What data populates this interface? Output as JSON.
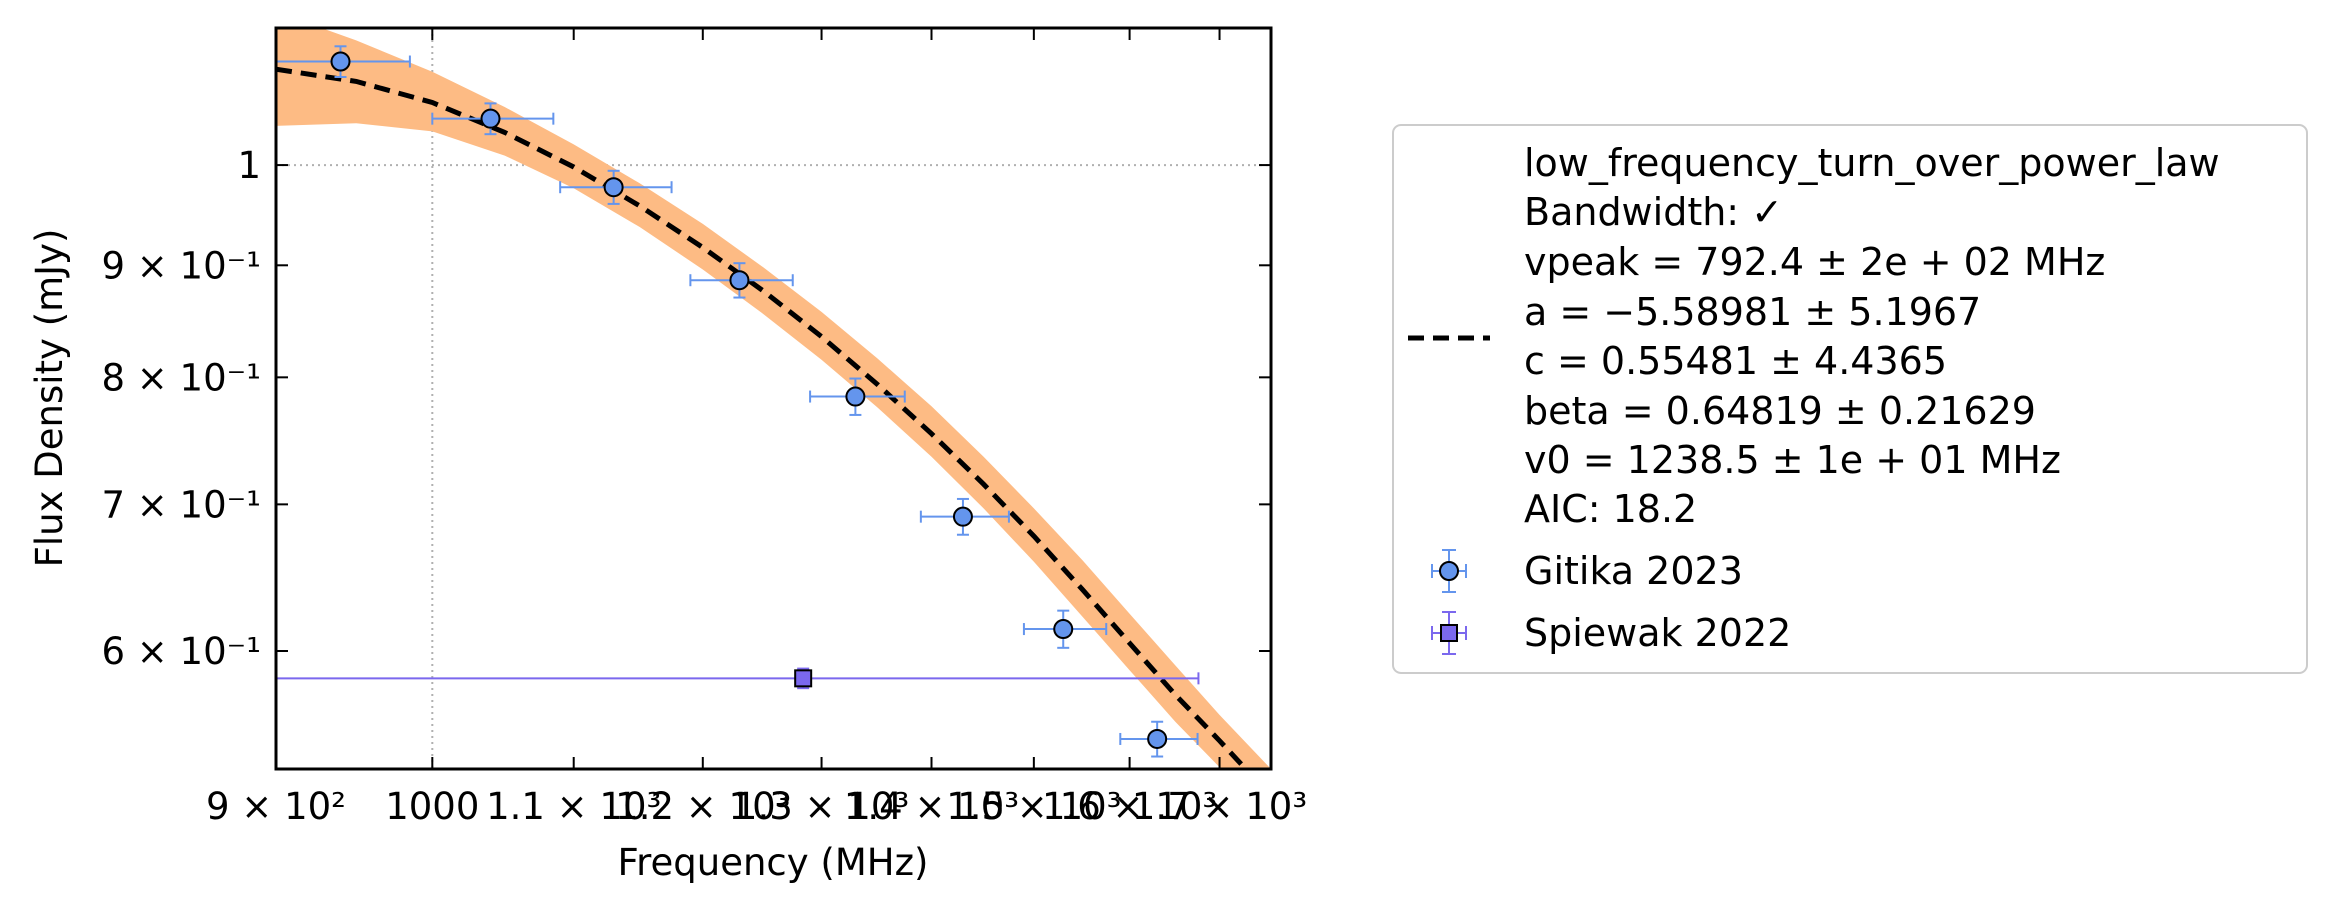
{
  "chart_data": {
    "type": "scatter",
    "x_scale": "log",
    "y_scale": "log",
    "xlabel": "Frequency (MHz)",
    "ylabel": "Flux Density (mJy)",
    "xlim": [
      900,
      1760
    ],
    "ylim": [
      0.53,
      1.155
    ],
    "grid": false,
    "reference_lines": {
      "x": 1000,
      "y": 1.0
    },
    "x_ticks": [
      {
        "value": 900,
        "label": "9 × 10²"
      },
      {
        "value": 1000,
        "label": "1000"
      },
      {
        "value": 1100,
        "label": "1.1 × 10³"
      },
      {
        "value": 1200,
        "label": "1.2 × 10³"
      },
      {
        "value": 1300,
        "label": "1.3 × 10³"
      },
      {
        "value": 1400,
        "label": "1.4 × 10³"
      },
      {
        "value": 1500,
        "label": "1.5 × 10³"
      },
      {
        "value": 1600,
        "label": "1.6 × 10³"
      },
      {
        "value": 1700,
        "label": "1.7 × 10³"
      }
    ],
    "y_ticks": [
      {
        "value": 1.0,
        "label": "1"
      },
      {
        "value": 0.9,
        "label": "9 × 10⁻¹"
      },
      {
        "value": 0.8,
        "label": "8 × 10⁻¹"
      },
      {
        "value": 0.7,
        "label": "7 × 10⁻¹"
      },
      {
        "value": 0.6,
        "label": "6 × 10⁻¹"
      }
    ],
    "legend_position": "right, outside plot",
    "fit": {
      "model": "low_frequency_turn_over_power_law",
      "bandwidth_label": "Bandwidth: ✓",
      "vpeak_label": "vpeak = 792.4 ± 2e + 02 MHz",
      "a_label": "a = −5.58981 ± 5.1967",
      "c_label": "c = 0.55481 ± 4.4365",
      "beta_label": "beta = 0.64819 ± 0.21629",
      "v0_label": "v0 = 1238.5 ± 1e + 01 MHz",
      "aic_label": "AIC: 18.2",
      "line_color": "#000000",
      "band_color": "#fdbb84",
      "curve": {
        "x": [
          900,
          950,
          1000,
          1050,
          1100,
          1150,
          1200,
          1250,
          1300,
          1350,
          1400,
          1450,
          1500,
          1550,
          1600,
          1650,
          1700,
          1760
        ],
        "y": [
          1.106,
          1.092,
          1.068,
          1.035,
          0.998,
          0.958,
          0.917,
          0.876,
          0.835,
          0.794,
          0.754,
          0.715,
          0.677,
          0.64,
          0.605,
          0.573,
          0.546,
          0.515
        ]
      },
      "band_upper": [
        1.175,
        1.14,
        1.103,
        1.063,
        1.022,
        0.981,
        0.94,
        0.898,
        0.857,
        0.816,
        0.776,
        0.736,
        0.697,
        0.66,
        0.624,
        0.591,
        0.561,
        0.53
      ],
      "band_lower": [
        1.042,
        1.045,
        1.036,
        1.01,
        0.976,
        0.937,
        0.896,
        0.855,
        0.815,
        0.775,
        0.736,
        0.697,
        0.659,
        0.622,
        0.588,
        0.557,
        0.531,
        0.5
      ]
    },
    "series": [
      {
        "name": "Gitika 2023",
        "marker": "circle",
        "color": "#6495ed",
        "points": [
          {
            "x": 940,
            "y": 1.115,
            "xerr_lo": 40,
            "xerr_hi": 45,
            "yerr": 0.018
          },
          {
            "x": 1040,
            "y": 1.05,
            "xerr_lo": 40,
            "xerr_hi": 45,
            "yerr": 0.017
          },
          {
            "x": 1130,
            "y": 0.977,
            "xerr_lo": 40,
            "xerr_hi": 45,
            "yerr": 0.017
          },
          {
            "x": 1230,
            "y": 0.886,
            "xerr_lo": 40,
            "xerr_hi": 45,
            "yerr": 0.016
          },
          {
            "x": 1330,
            "y": 0.784,
            "xerr_lo": 40,
            "xerr_hi": 45,
            "yerr": 0.015
          },
          {
            "x": 1430,
            "y": 0.691,
            "xerr_lo": 40,
            "xerr_hi": 45,
            "yerr": 0.013
          },
          {
            "x": 1530,
            "y": 0.614,
            "xerr_lo": 40,
            "xerr_hi": 45,
            "yerr": 0.012
          },
          {
            "x": 1630,
            "y": 0.547,
            "xerr_lo": 40,
            "xerr_hi": 45,
            "yerr": 0.01
          }
        ]
      },
      {
        "name": "Spiewak 2022",
        "marker": "square",
        "color": "#7b68ee",
        "points": [
          {
            "x": 1284,
            "y": 0.583,
            "xerr_lo": 384,
            "xerr_hi": 392,
            "yerr": 0.006
          }
        ]
      }
    ]
  }
}
